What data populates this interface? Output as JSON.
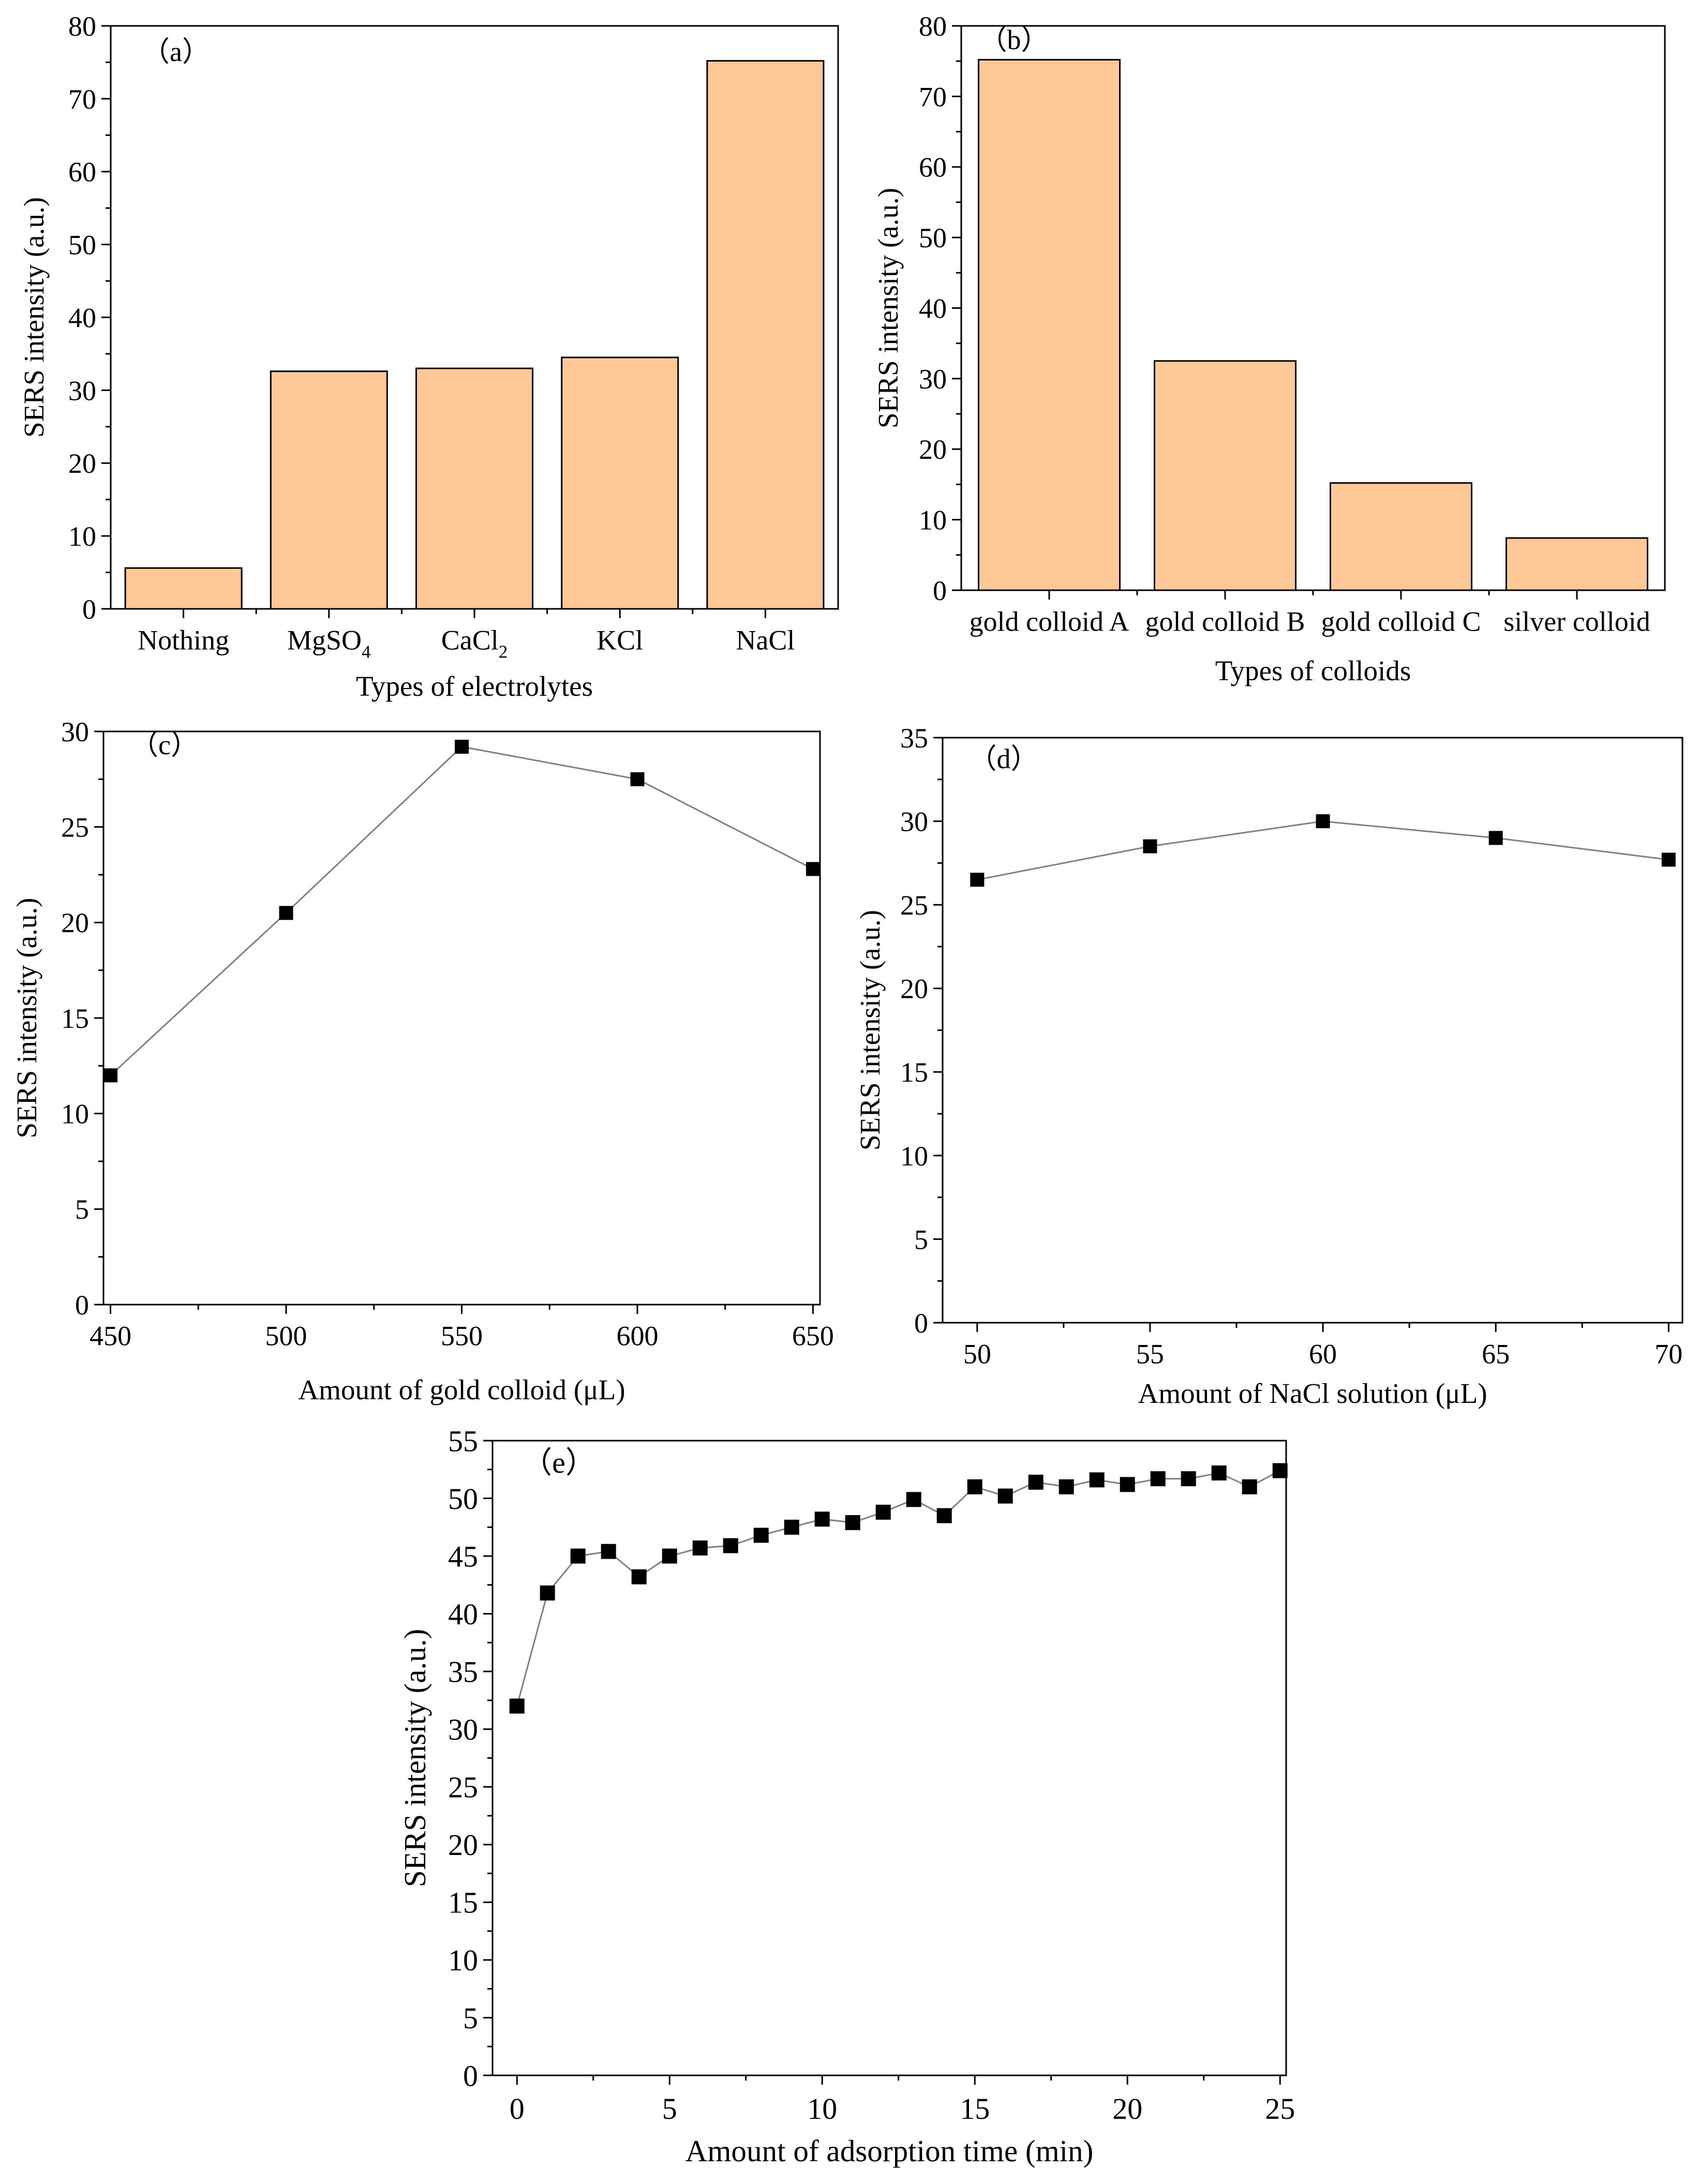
{
  "chart_data": [
    {
      "id": "a",
      "type": "bar",
      "panel_label": "（a）",
      "title": "",
      "categories": [
        "Nothing",
        "MgSO",
        "CaCl",
        "KCl",
        "NaCl"
      ],
      "category_subscripts": [
        "",
        "4",
        "2",
        "",
        ""
      ],
      "values": [
        5.6,
        32.6,
        33.0,
        34.5,
        75.2
      ],
      "xlabel": "Types of electrolytes",
      "ylabel": "SERS intensity (a.u.)",
      "ylim": [
        0,
        80
      ],
      "yticks": [
        0,
        10,
        20,
        30,
        40,
        50,
        60,
        70,
        80
      ],
      "bar_color": "#FFC896",
      "grid": false
    },
    {
      "id": "b",
      "type": "bar",
      "panel_label": "（b）",
      "title": "",
      "categories": [
        "gold colloid A",
        "gold colloid B",
        "gold colloid C",
        "silver colloid"
      ],
      "values": [
        75.2,
        32.5,
        15.2,
        7.4
      ],
      "xlabel": "Types of colloids",
      "ylabel": "SERS intensity (a.u.)",
      "ylim": [
        0,
        80
      ],
      "yticks": [
        0,
        10,
        20,
        30,
        40,
        50,
        60,
        70,
        80
      ],
      "bar_color": "#FFC896",
      "grid": false
    },
    {
      "id": "c",
      "type": "line",
      "panel_label": "（c）",
      "title": "",
      "x": [
        450,
        500,
        550,
        600,
        650
      ],
      "y": [
        12.0,
        20.5,
        29.2,
        27.5,
        22.8
      ],
      "xlabel": "Amount of gold colloid (μL)",
      "ylabel": "SERS intensity (a.u.)",
      "xlim": [
        448,
        652
      ],
      "xticks": [
        450,
        500,
        550,
        600,
        650
      ],
      "ylim": [
        0,
        30
      ],
      "yticks": [
        0,
        5,
        10,
        15,
        20,
        25,
        30
      ],
      "marker": "square",
      "line_color": "#808080",
      "grid": false
    },
    {
      "id": "d",
      "type": "line",
      "panel_label": "（d）",
      "title": "",
      "x": [
        50,
        55,
        60,
        65,
        70
      ],
      "y": [
        26.5,
        28.5,
        30.0,
        29.0,
        27.7
      ],
      "xlabel": "Amount of NaCl solution (μL)",
      "ylabel": "SERS intensity (a.u.)",
      "xlim": [
        49,
        70.4
      ],
      "xticks": [
        50,
        55,
        60,
        65,
        70
      ],
      "ylim": [
        0,
        35
      ],
      "yticks": [
        0,
        5,
        10,
        15,
        20,
        25,
        30,
        35
      ],
      "marker": "square",
      "line_color": "#808080",
      "grid": false
    },
    {
      "id": "e",
      "type": "line",
      "panel_label": "（e）",
      "title": "",
      "x": [
        0,
        1,
        2,
        3,
        4,
        5,
        6,
        7,
        8,
        9,
        10,
        11,
        12,
        13,
        14,
        15,
        16,
        17,
        18,
        19,
        20,
        21,
        22,
        23,
        24,
        25
      ],
      "y": [
        32.0,
        41.8,
        45.0,
        45.4,
        43.2,
        45.0,
        45.7,
        45.9,
        46.8,
        47.5,
        48.2,
        47.9,
        48.8,
        49.9,
        48.5,
        51.0,
        50.2,
        51.4,
        51.0,
        51.6,
        51.2,
        51.7,
        51.7,
        52.2,
        51.0,
        52.4
      ],
      "xlabel": "Amount of adsorption time (min)",
      "ylabel": "SERS intensity (a.u.)",
      "xlim": [
        -0.8,
        25.2
      ],
      "xticks": [
        0,
        5,
        10,
        15,
        20,
        25
      ],
      "ylim": [
        0,
        55
      ],
      "yticks": [
        0,
        5,
        10,
        15,
        20,
        25,
        30,
        35,
        40,
        45,
        50,
        55
      ],
      "marker": "square",
      "line_color": "#808080",
      "grid": false
    }
  ]
}
